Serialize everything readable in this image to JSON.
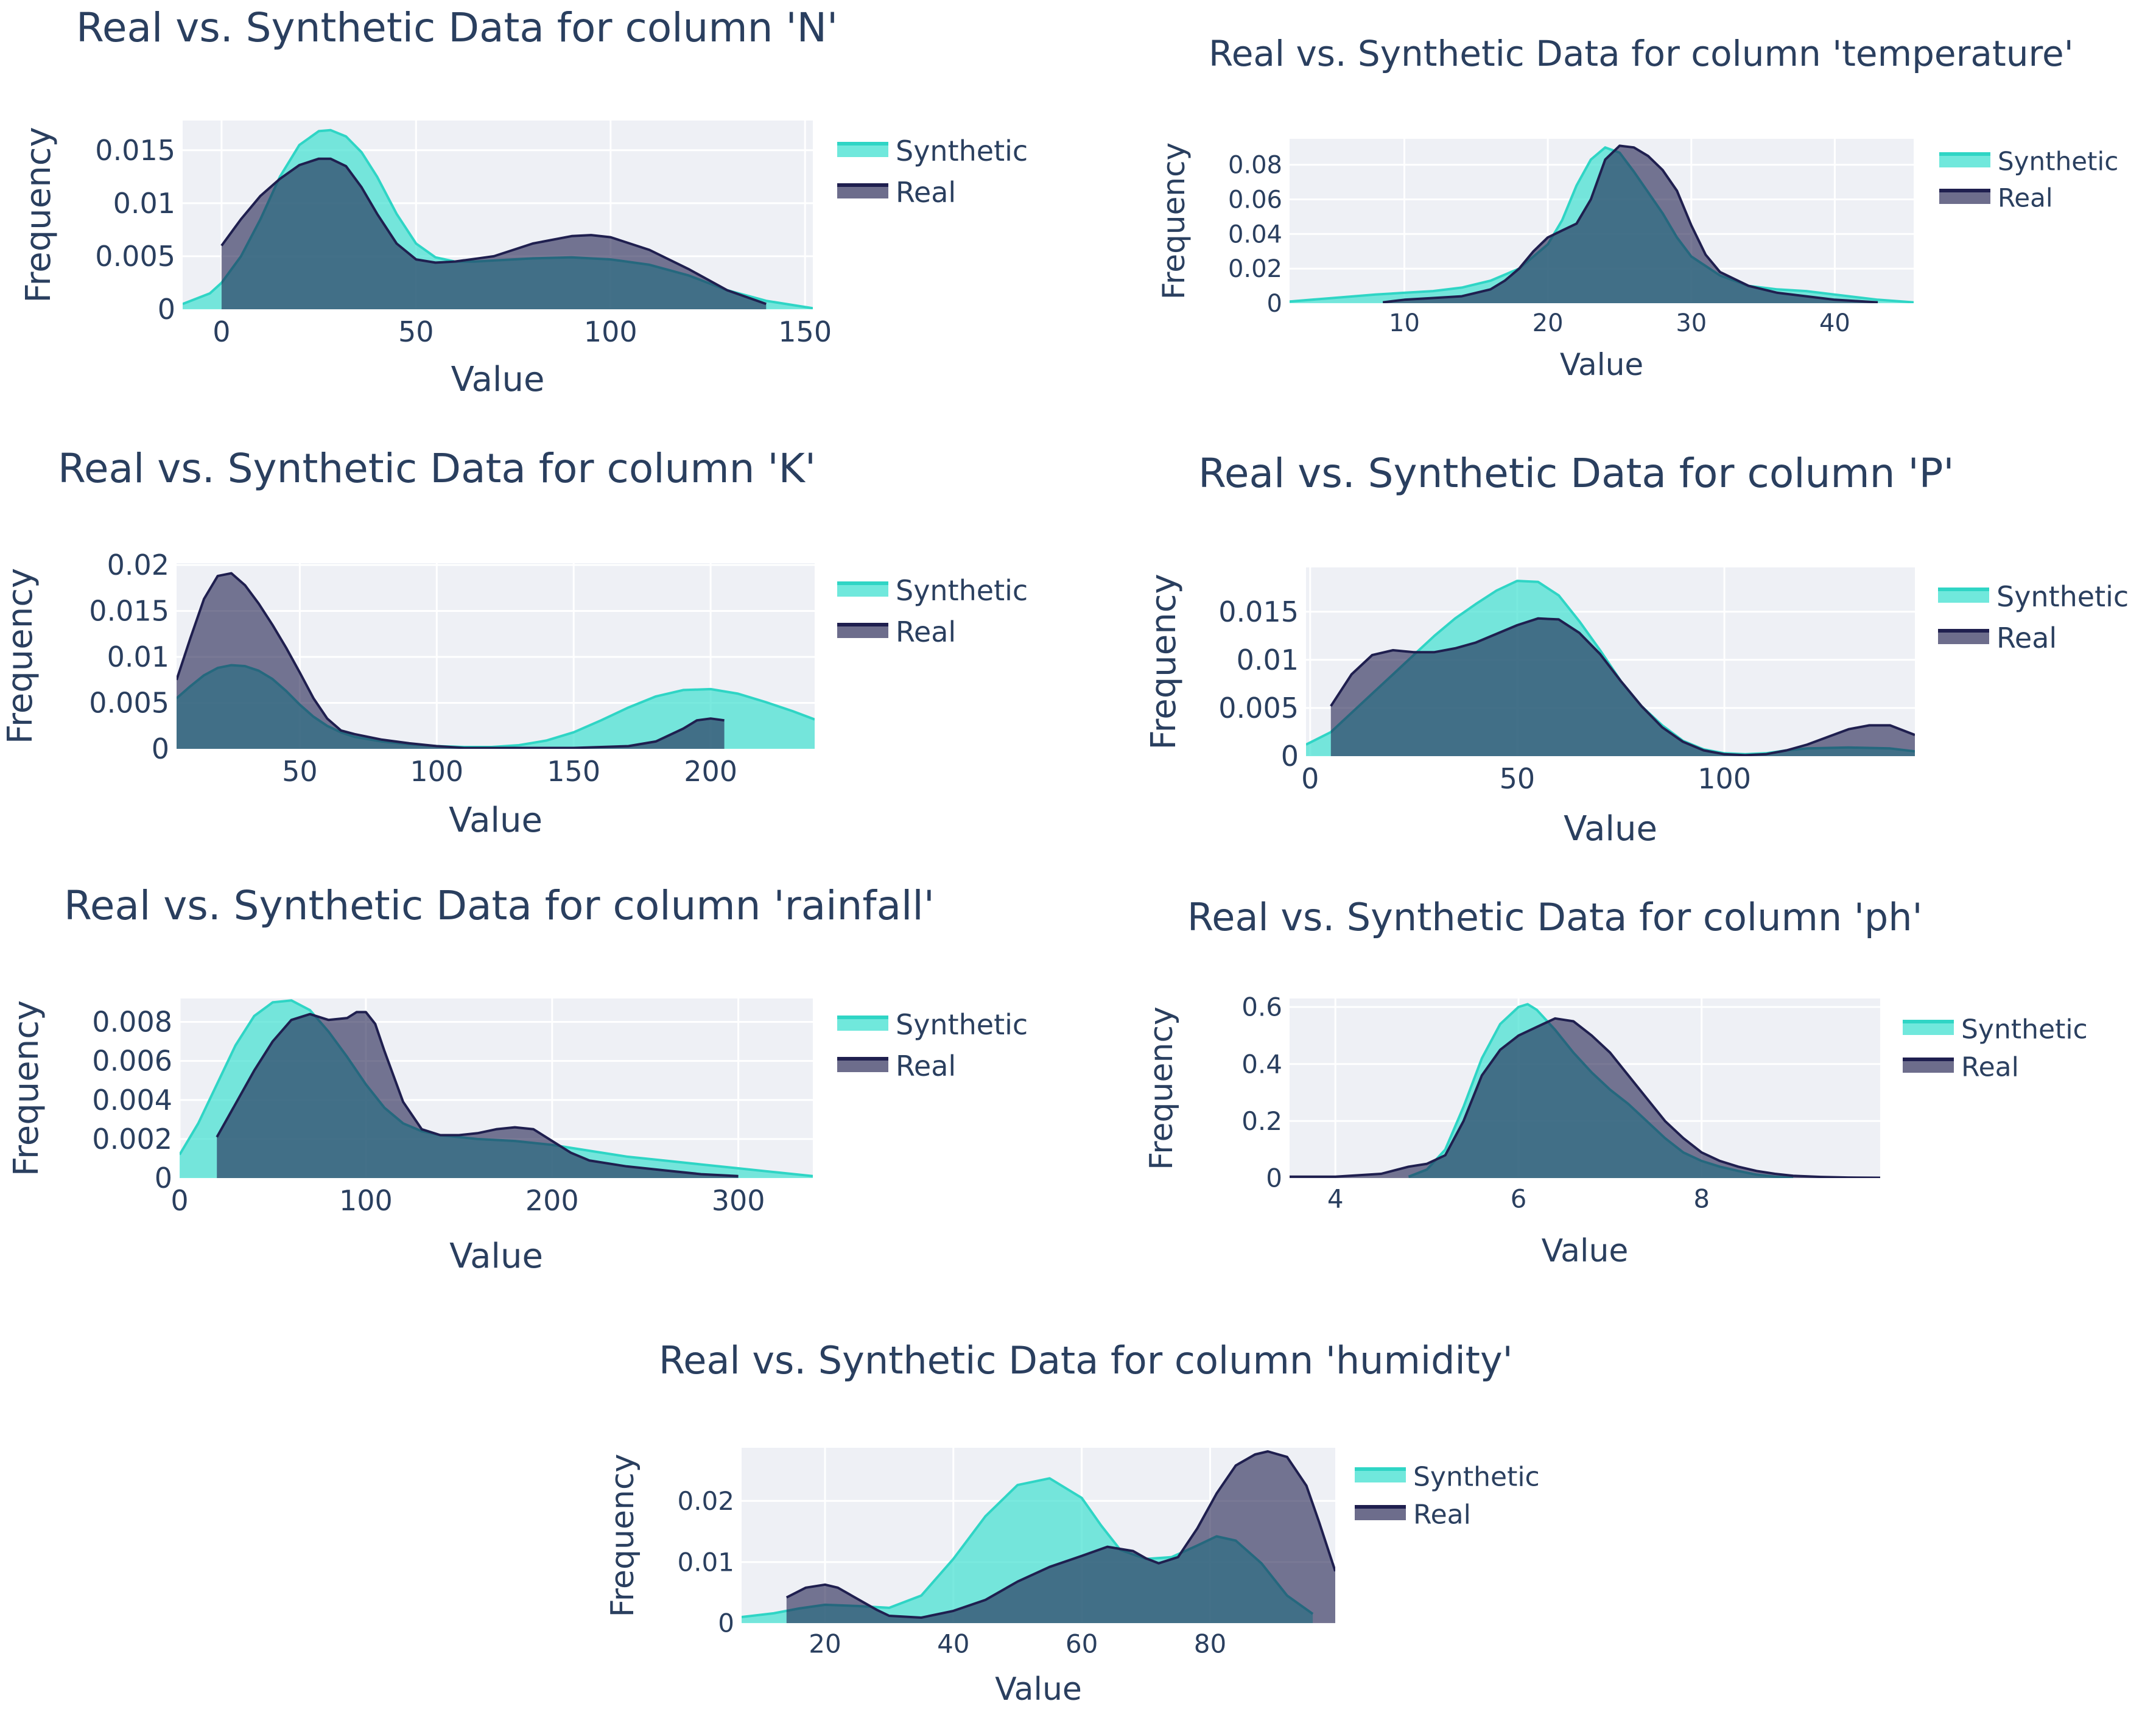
{
  "colors": {
    "synthetic": "#40e0d0",
    "real": "#1f1f4f",
    "plot_bg": "#eef0f5",
    "grid": "#ffffff",
    "text": "#2a3f5f"
  },
  "legend": {
    "synthetic": "Synthetic",
    "real": "Real"
  },
  "chart_data": [
    {
      "type": "area",
      "title": "Real vs. Synthetic Data for column 'N'",
      "xlabel": "Value",
      "ylabel": "Frequency",
      "xlim": [
        -10,
        152
      ],
      "ylim": [
        0,
        0.0178
      ],
      "xticks": [
        0,
        50,
        100,
        150
      ],
      "xtick_labels": [
        "0",
        "50",
        "100",
        "150"
      ],
      "yticks": [
        0,
        0.005,
        0.01,
        0.015
      ],
      "ytick_labels": [
        "0",
        "0.005",
        "0.01",
        "0.015"
      ],
      "series": [
        {
          "name": "Synthetic",
          "x": [
            -10,
            -3,
            0,
            5,
            10,
            15,
            20,
            25,
            28,
            32,
            36,
            40,
            45,
            50,
            55,
            60,
            65,
            70,
            80,
            90,
            100,
            110,
            120,
            130,
            140,
            152
          ],
          "y": [
            0.0005,
            0.0015,
            0.0025,
            0.005,
            0.0085,
            0.0125,
            0.0155,
            0.0168,
            0.0169,
            0.0163,
            0.0148,
            0.0125,
            0.009,
            0.0062,
            0.0049,
            0.0045,
            0.0045,
            0.0046,
            0.0048,
            0.0049,
            0.0047,
            0.0042,
            0.0032,
            0.0018,
            0.0008,
            0.0001
          ]
        },
        {
          "name": "Real",
          "x": [
            0,
            5,
            10,
            15,
            20,
            25,
            28,
            32,
            36,
            40,
            45,
            50,
            55,
            60,
            70,
            80,
            90,
            95,
            100,
            110,
            120,
            130,
            140
          ],
          "y": [
            0.006,
            0.0085,
            0.0107,
            0.0123,
            0.0136,
            0.0142,
            0.0142,
            0.0135,
            0.0115,
            0.009,
            0.0062,
            0.0047,
            0.0044,
            0.0045,
            0.005,
            0.0062,
            0.0069,
            0.007,
            0.0068,
            0.0056,
            0.0038,
            0.0018,
            0.0005
          ]
        }
      ]
    },
    {
      "type": "area",
      "title": "Real vs. Synthetic Data for column 'temperature'",
      "xlabel": "Value",
      "ylabel": "Frequency",
      "xlim": [
        2,
        45.5
      ],
      "ylim": [
        0,
        0.095
      ],
      "xticks": [
        10,
        20,
        30,
        40
      ],
      "xtick_labels": [
        "10",
        "20",
        "30",
        "40"
      ],
      "yticks": [
        0,
        0.02,
        0.04,
        0.06,
        0.08
      ],
      "ytick_labels": [
        "0",
        "0.02",
        "0.04",
        "0.06",
        "0.08"
      ],
      "series": [
        {
          "name": "Synthetic",
          "x": [
            2,
            5,
            8,
            10,
            12,
            14,
            16,
            18,
            20,
            21,
            22,
            23,
            24,
            25,
            26,
            27,
            28,
            29,
            30,
            32,
            34,
            36,
            38,
            40,
            43,
            45.5
          ],
          "y": [
            0.001,
            0.003,
            0.005,
            0.006,
            0.007,
            0.009,
            0.013,
            0.02,
            0.034,
            0.048,
            0.068,
            0.083,
            0.09,
            0.087,
            0.076,
            0.064,
            0.052,
            0.038,
            0.027,
            0.016,
            0.01,
            0.008,
            0.007,
            0.005,
            0.002,
            0.0005
          ]
        },
        {
          "name": "Real",
          "x": [
            8.5,
            10,
            12,
            14,
            16,
            17,
            18,
            19,
            20,
            21,
            22,
            23,
            24,
            25,
            26,
            27,
            28,
            29,
            30,
            31,
            32,
            34,
            36,
            38,
            40,
            43
          ],
          "y": [
            0.0005,
            0.002,
            0.003,
            0.004,
            0.008,
            0.013,
            0.02,
            0.03,
            0.038,
            0.042,
            0.046,
            0.06,
            0.083,
            0.091,
            0.09,
            0.085,
            0.077,
            0.065,
            0.045,
            0.028,
            0.018,
            0.01,
            0.006,
            0.004,
            0.002,
            0.0005
          ]
        }
      ]
    },
    {
      "type": "area",
      "title": "Real vs. Synthetic Data for column 'K'",
      "xlabel": "Value",
      "ylabel": "Frequency",
      "xlim": [
        5,
        238
      ],
      "ylim": [
        0,
        0.0202
      ],
      "xticks": [
        50,
        100,
        150,
        200
      ],
      "xtick_labels": [
        "50",
        "100",
        "150",
        "200"
      ],
      "yticks": [
        0,
        0.005,
        0.01,
        0.015,
        0.02
      ],
      "ytick_labels": [
        "0",
        "0.005",
        "0.01",
        "0.015",
        "0.02"
      ],
      "series": [
        {
          "name": "Synthetic",
          "x": [
            5,
            10,
            15,
            20,
            25,
            30,
            35,
            40,
            45,
            50,
            55,
            60,
            65,
            70,
            80,
            90,
            100,
            110,
            120,
            130,
            140,
            150,
            160,
            170,
            180,
            190,
            200,
            210,
            220,
            230,
            238
          ],
          "y": [
            0.0055,
            0.0068,
            0.008,
            0.0088,
            0.0091,
            0.009,
            0.0085,
            0.0076,
            0.0063,
            0.0048,
            0.0035,
            0.0025,
            0.0018,
            0.0013,
            0.0008,
            0.0005,
            0.0003,
            0.0002,
            0.0002,
            0.0004,
            0.0009,
            0.0018,
            0.0031,
            0.0045,
            0.0057,
            0.0064,
            0.0065,
            0.006,
            0.0051,
            0.0041,
            0.0032
          ]
        },
        {
          "name": "Real",
          "x": [
            5,
            10,
            15,
            20,
            25,
            30,
            35,
            40,
            45,
            50,
            55,
            60,
            65,
            70,
            80,
            90,
            100,
            110,
            120,
            130,
            140,
            150,
            160,
            170,
            180,
            190,
            195,
            200,
            205
          ],
          "y": [
            0.0075,
            0.012,
            0.0163,
            0.0188,
            0.0191,
            0.0178,
            0.0158,
            0.0135,
            0.011,
            0.0083,
            0.0055,
            0.0033,
            0.002,
            0.0016,
            0.001,
            0.0006,
            0.0003,
            0.0001,
            0.0001,
            0.0001,
            0.0001,
            0.0001,
            0.0002,
            0.0003,
            0.0008,
            0.0022,
            0.0031,
            0.0033,
            0.0031
          ]
        }
      ]
    },
    {
      "type": "area",
      "title": "Real vs. Synthetic Data for column 'P'",
      "xlabel": "Value",
      "ylabel": "Frequency",
      "xlim": [
        -1,
        146
      ],
      "ylim": [
        0,
        0.0196
      ],
      "xticks": [
        0,
        50,
        100
      ],
      "xtick_labels": [
        "0",
        "50",
        "100"
      ],
      "yticks": [
        0,
        0.005,
        0.01,
        0.015
      ],
      "ytick_labels": [
        "0",
        "0.005",
        "0.01",
        "0.015"
      ],
      "series": [
        {
          "name": "Synthetic",
          "x": [
            -1,
            5,
            10,
            15,
            20,
            25,
            30,
            35,
            40,
            45,
            50,
            55,
            60,
            65,
            70,
            75,
            80,
            85,
            90,
            95,
            100,
            105,
            110,
            115,
            120,
            130,
            140,
            146
          ],
          "y": [
            0.0012,
            0.0025,
            0.0045,
            0.0065,
            0.0085,
            0.0105,
            0.0125,
            0.0143,
            0.0158,
            0.0172,
            0.0182,
            0.0181,
            0.0167,
            0.014,
            0.011,
            0.0078,
            0.0052,
            0.0032,
            0.0016,
            0.0007,
            0.0003,
            0.0002,
            0.0003,
            0.0006,
            0.0008,
            0.0009,
            0.0008,
            0.0005
          ]
        },
        {
          "name": "Real",
          "x": [
            5,
            10,
            15,
            20,
            25,
            30,
            35,
            40,
            45,
            50,
            55,
            60,
            65,
            70,
            75,
            80,
            85,
            90,
            95,
            100,
            105,
            110,
            115,
            120,
            125,
            130,
            135,
            140,
            146
          ],
          "y": [
            0.0052,
            0.0085,
            0.0105,
            0.011,
            0.0108,
            0.0108,
            0.0112,
            0.0118,
            0.0127,
            0.0136,
            0.0143,
            0.0142,
            0.0128,
            0.0106,
            0.0078,
            0.0052,
            0.003,
            0.0015,
            0.0006,
            0.0002,
            0.0001,
            0.0002,
            0.0006,
            0.0012,
            0.002,
            0.0028,
            0.0032,
            0.0032,
            0.0022
          ]
        }
      ]
    },
    {
      "type": "area",
      "title": "Real vs. Synthetic Data for column 'rainfall'",
      "xlabel": "Value",
      "ylabel": "Frequency",
      "xlim": [
        0,
        340
      ],
      "ylim": [
        0,
        0.0092
      ],
      "xticks": [
        0,
        100,
        200,
        300
      ],
      "xtick_labels": [
        "0",
        "100",
        "200",
        "300"
      ],
      "yticks": [
        0,
        0.002,
        0.004,
        0.006,
        0.008
      ],
      "ytick_labels": [
        "0",
        "0.002",
        "0.004",
        "0.006",
        "0.008"
      ],
      "series": [
        {
          "name": "Synthetic",
          "x": [
            0,
            10,
            20,
            30,
            40,
            50,
            60,
            70,
            80,
            90,
            100,
            110,
            120,
            130,
            140,
            150,
            160,
            180,
            200,
            220,
            240,
            260,
            280,
            300,
            320,
            340
          ],
          "y": [
            0.0012,
            0.0028,
            0.0048,
            0.0068,
            0.0083,
            0.009,
            0.0091,
            0.0086,
            0.0075,
            0.0062,
            0.0048,
            0.0036,
            0.0028,
            0.0024,
            0.0022,
            0.0021,
            0.002,
            0.0019,
            0.0017,
            0.0014,
            0.0011,
            0.0009,
            0.0007,
            0.0005,
            0.0003,
            0.0001
          ]
        },
        {
          "name": "Real",
          "x": [
            20,
            30,
            40,
            50,
            60,
            70,
            80,
            90,
            95,
            100,
            105,
            110,
            120,
            130,
            140,
            150,
            160,
            170,
            180,
            190,
            200,
            210,
            220,
            240,
            260,
            280,
            300
          ],
          "y": [
            0.0021,
            0.0038,
            0.0055,
            0.007,
            0.0081,
            0.0084,
            0.0081,
            0.0082,
            0.0085,
            0.0085,
            0.0079,
            0.0065,
            0.0039,
            0.0025,
            0.0022,
            0.0022,
            0.0023,
            0.0025,
            0.0026,
            0.0025,
            0.0019,
            0.0013,
            0.0009,
            0.0006,
            0.0004,
            0.0002,
            0.0001
          ]
        }
      ]
    },
    {
      "type": "area",
      "title": "Real vs. Synthetic Data for column 'ph'",
      "xlabel": "Value",
      "ylabel": "Frequency",
      "xlim": [
        3.5,
        9.95
      ],
      "ylim": [
        0,
        0.63
      ],
      "xticks": [
        4,
        6,
        8
      ],
      "xtick_labels": [
        "4",
        "6",
        "8"
      ],
      "yticks": [
        0,
        0.2,
        0.4,
        0.6
      ],
      "ytick_labels": [
        "0",
        "0.2",
        "0.4",
        "0.6"
      ],
      "series": [
        {
          "name": "Synthetic",
          "x": [
            4.8,
            5.0,
            5.2,
            5.4,
            5.6,
            5.8,
            6.0,
            6.1,
            6.2,
            6.4,
            6.6,
            6.8,
            7.0,
            7.2,
            7.4,
            7.6,
            7.8,
            8.0,
            8.2,
            8.4,
            8.6,
            8.8,
            9.0
          ],
          "y": [
            0.005,
            0.03,
            0.1,
            0.25,
            0.42,
            0.54,
            0.6,
            0.61,
            0.59,
            0.52,
            0.44,
            0.37,
            0.31,
            0.26,
            0.2,
            0.14,
            0.09,
            0.06,
            0.04,
            0.025,
            0.012,
            0.005,
            0.001
          ]
        },
        {
          "name": "Real",
          "x": [
            3.5,
            4.0,
            4.5,
            4.8,
            5.0,
            5.2,
            5.4,
            5.6,
            5.8,
            6.0,
            6.2,
            6.4,
            6.6,
            6.8,
            7.0,
            7.2,
            7.4,
            7.6,
            7.8,
            8.0,
            8.2,
            8.4,
            8.6,
            8.8,
            9.0,
            9.3,
            9.6,
            9.95
          ],
          "y": [
            0.005,
            0.005,
            0.015,
            0.04,
            0.05,
            0.08,
            0.2,
            0.36,
            0.45,
            0.5,
            0.53,
            0.56,
            0.55,
            0.5,
            0.44,
            0.36,
            0.28,
            0.2,
            0.14,
            0.09,
            0.06,
            0.04,
            0.025,
            0.015,
            0.008,
            0.004,
            0.002,
            0.001
          ]
        }
      ]
    },
    {
      "type": "area",
      "title": "Real vs. Synthetic Data for column 'humidity'",
      "xlabel": "Value",
      "ylabel": "Frequency",
      "xlim": [
        7,
        99.5
      ],
      "ylim": [
        0,
        0.0287
      ],
      "xticks": [
        20,
        40,
        60,
        80
      ],
      "xtick_labels": [
        "20",
        "40",
        "60",
        "80"
      ],
      "yticks": [
        0,
        0.01,
        0.02
      ],
      "ytick_labels": [
        "0",
        "0.01",
        "0.02"
      ],
      "series": [
        {
          "name": "Synthetic",
          "x": [
            7,
            12,
            16,
            20,
            25,
            30,
            35,
            40,
            45,
            50,
            55,
            60,
            63,
            66,
            70,
            74,
            78,
            81,
            84,
            88,
            92,
            96
          ],
          "y": [
            0.001,
            0.0016,
            0.0024,
            0.003,
            0.0028,
            0.0025,
            0.0045,
            0.0105,
            0.0175,
            0.0226,
            0.0237,
            0.0205,
            0.016,
            0.012,
            0.0105,
            0.0108,
            0.0127,
            0.0142,
            0.0135,
            0.0098,
            0.0045,
            0.0015
          ]
        },
        {
          "name": "Real",
          "x": [
            14,
            17,
            20,
            22,
            25,
            28,
            30,
            35,
            40,
            45,
            50,
            55,
            60,
            64,
            68,
            70,
            72,
            75,
            78,
            81,
            84,
            87,
            89,
            92,
            95,
            97,
            99.5
          ],
          "y": [
            0.0042,
            0.0058,
            0.0063,
            0.0058,
            0.004,
            0.0022,
            0.0012,
            0.0009,
            0.002,
            0.0038,
            0.0068,
            0.0092,
            0.011,
            0.0125,
            0.0118,
            0.0106,
            0.0098,
            0.0108,
            0.0155,
            0.0212,
            0.0258,
            0.0276,
            0.0281,
            0.0272,
            0.0225,
            0.0165,
            0.0085
          ]
        }
      ]
    }
  ]
}
